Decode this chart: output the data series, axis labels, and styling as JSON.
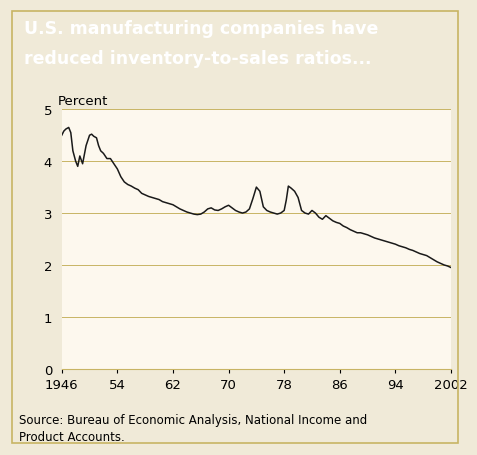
{
  "title_line1": "U.S. manufacturing companies have",
  "title_line2": "reduced inventory-to-sales ratios...",
  "ylabel": "Percent",
  "source_text": "Source: Bureau of Economic Analysis, National Income and\nProduct Accounts.",
  "title_bg_color": "#222222",
  "title_text_color": "#ffffff",
  "chart_bg_color": "#fdf8ee",
  "outer_bg_color": "#f0ead8",
  "line_color": "#1a1a1a",
  "grid_color": "#c8b464",
  "bottom_border_color": "#c8b464",
  "xlim": [
    1946,
    2002
  ],
  "ylim": [
    0,
    5
  ],
  "yticks": [
    0,
    1,
    2,
    3,
    4,
    5
  ],
  "xticks": [
    1946,
    1954,
    1962,
    1970,
    1978,
    1986,
    1994,
    2002
  ],
  "xticklabels": [
    "1946",
    "54",
    "62",
    "70",
    "78",
    "86",
    "94",
    "2002"
  ],
  "title_fontsize": 12.5,
  "label_fontsize": 9.5,
  "tick_fontsize": 9.5,
  "source_fontsize": 8.5,
  "years_detail": [
    1946.0,
    1946.3,
    1946.6,
    1947.0,
    1947.3,
    1947.6,
    1948.0,
    1948.3,
    1948.6,
    1949.0,
    1949.5,
    1950.0,
    1950.3,
    1950.6,
    1951.0,
    1951.3,
    1951.6,
    1952.0,
    1952.5,
    1953.0,
    1953.5,
    1954.0,
    1954.5,
    1955.0,
    1955.5,
    1956.0,
    1956.5,
    1957.0,
    1957.5,
    1958.0,
    1958.5,
    1959.0,
    1959.5,
    1960.0,
    1960.5,
    1961.0,
    1961.5,
    1962.0,
    1962.5,
    1963.0,
    1963.5,
    1964.0,
    1964.5,
    1965.0,
    1965.5,
    1966.0,
    1966.5,
    1967.0,
    1967.5,
    1968.0,
    1968.5,
    1969.0,
    1969.5,
    1970.0,
    1970.5,
    1971.0,
    1971.5,
    1972.0,
    1972.5,
    1973.0,
    1973.5,
    1974.0,
    1974.5,
    1975.0,
    1975.5,
    1976.0,
    1976.5,
    1977.0,
    1977.5,
    1978.0,
    1978.3,
    1978.6,
    1979.0,
    1979.5,
    1980.0,
    1980.5,
    1981.0,
    1981.5,
    1982.0,
    1982.5,
    1983.0,
    1983.5,
    1984.0,
    1984.5,
    1985.0,
    1985.5,
    1986.0,
    1986.5,
    1987.0,
    1987.5,
    1988.0,
    1988.5,
    1989.0,
    1989.5,
    1990.0,
    1990.5,
    1991.0,
    1991.5,
    1992.0,
    1992.5,
    1993.0,
    1993.5,
    1994.0,
    1994.5,
    1995.0,
    1995.5,
    1996.0,
    1996.5,
    1997.0,
    1997.5,
    1998.0,
    1998.5,
    1999.0,
    1999.5,
    2000.0,
    2000.5,
    2001.0,
    2001.5,
    2002.0
  ],
  "values_detail": [
    4.5,
    4.58,
    4.62,
    4.65,
    4.55,
    4.2,
    4.0,
    3.9,
    4.1,
    3.95,
    4.3,
    4.5,
    4.52,
    4.48,
    4.45,
    4.3,
    4.2,
    4.15,
    4.05,
    4.05,
    3.95,
    3.85,
    3.7,
    3.6,
    3.55,
    3.52,
    3.48,
    3.45,
    3.38,
    3.35,
    3.32,
    3.3,
    3.28,
    3.26,
    3.22,
    3.2,
    3.18,
    3.16,
    3.12,
    3.08,
    3.05,
    3.02,
    3.0,
    2.98,
    2.97,
    2.98,
    3.02,
    3.08,
    3.1,
    3.06,
    3.05,
    3.08,
    3.12,
    3.15,
    3.1,
    3.05,
    3.02,
    3.0,
    3.02,
    3.08,
    3.28,
    3.5,
    3.42,
    3.12,
    3.05,
    3.02,
    3.0,
    2.98,
    3.0,
    3.05,
    3.25,
    3.52,
    3.48,
    3.42,
    3.3,
    3.05,
    3.0,
    2.98,
    3.05,
    3.0,
    2.92,
    2.88,
    2.95,
    2.9,
    2.85,
    2.82,
    2.8,
    2.75,
    2.72,
    2.68,
    2.65,
    2.62,
    2.62,
    2.6,
    2.58,
    2.55,
    2.52,
    2.5,
    2.48,
    2.46,
    2.44,
    2.42,
    2.4,
    2.37,
    2.35,
    2.33,
    2.3,
    2.28,
    2.25,
    2.22,
    2.2,
    2.18,
    2.14,
    2.1,
    2.06,
    2.03,
    2.0,
    1.98,
    1.95
  ]
}
